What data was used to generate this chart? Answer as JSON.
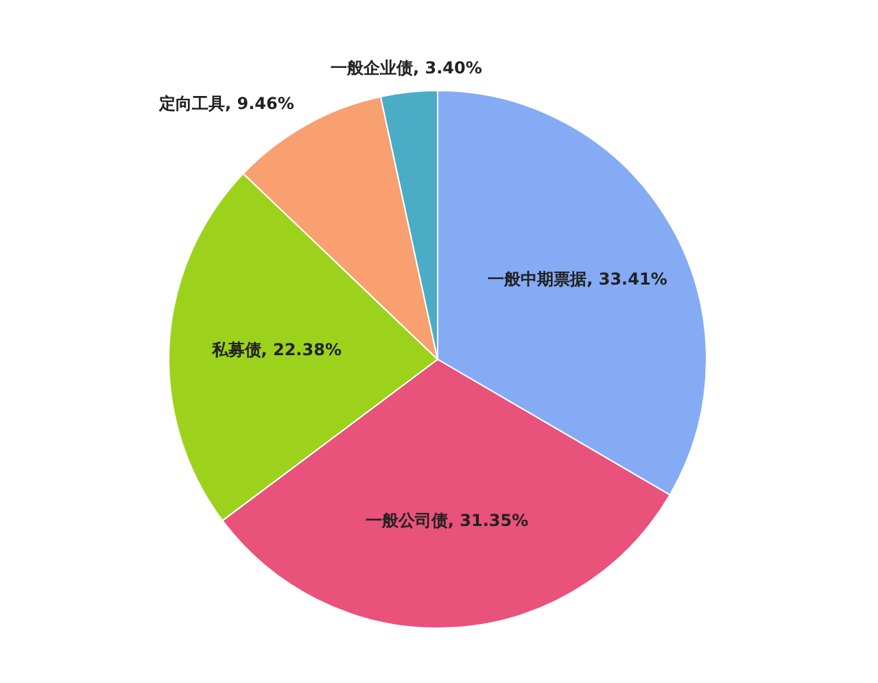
{
  "chart_data": {
    "type": "pie",
    "categories": [
      "一般中期票据",
      "一般公司债",
      "私募债",
      "定向工具",
      "一般企业债"
    ],
    "values": [
      33.41,
      31.35,
      22.38,
      9.46,
      3.4
    ],
    "colors": [
      "#85abf5",
      "#e9527b",
      "#9dd21c",
      "#f8a070",
      "#4bacc6"
    ],
    "value_labels": [
      "33.41%",
      "31.35%",
      "22.38%",
      "9.46%",
      "3.40%"
    ]
  }
}
